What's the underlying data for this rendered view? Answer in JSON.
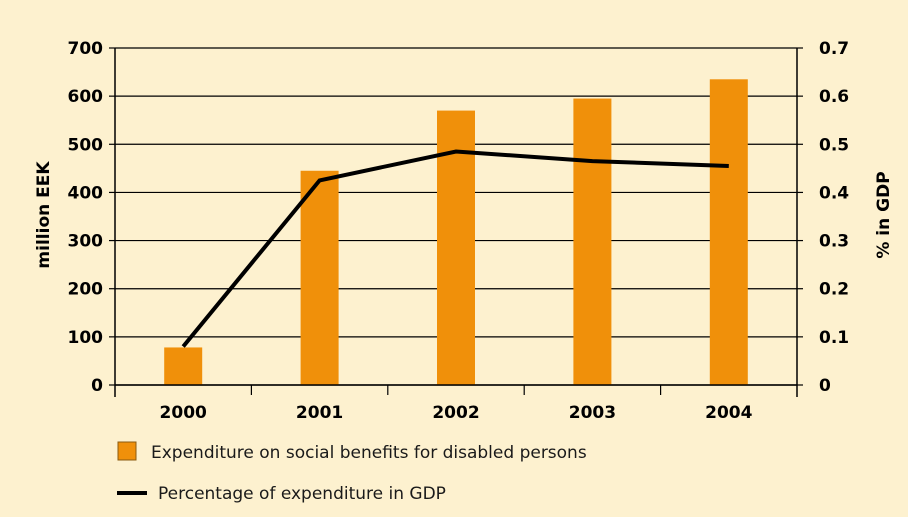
{
  "chart_data": {
    "type": "bar",
    "categories": [
      "2000",
      "2001",
      "2002",
      "2003",
      "2004"
    ],
    "series": [
      {
        "name": "Expenditure on social benefits for disabled persons",
        "type": "bar",
        "axis": "left",
        "values": [
          78,
          445,
          570,
          595,
          635
        ]
      },
      {
        "name": "Percentage of expenditure in GDP",
        "type": "line",
        "axis": "right",
        "values": [
          0.08,
          0.425,
          0.485,
          0.465,
          0.455
        ]
      }
    ],
    "ylabel": "million EEK",
    "ylim": [
      0,
      700
    ],
    "yticks": [
      "0",
      "100",
      "200",
      "300",
      "400",
      "500",
      "600",
      "700"
    ],
    "y2label": "% in GDP",
    "y2lim": [
      0,
      0.7
    ],
    "y2ticks": [
      "0",
      "0.1",
      "0.2",
      "0.3",
      "0.4",
      "0.5",
      "0.6",
      "0.7"
    ],
    "grid": true,
    "legend_position": "bottom-left",
    "colors": {
      "bar": "#f0900a",
      "line": "#000000",
      "background": "#fdf1cf"
    }
  }
}
